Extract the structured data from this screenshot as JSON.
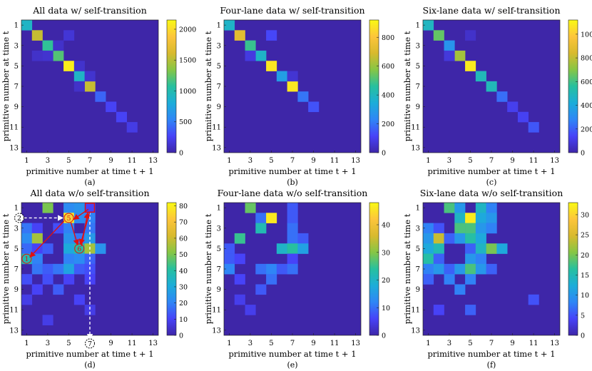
{
  "figure": {
    "xlabel": "primitive number at time t + 1",
    "ylabel": "primitive number at time t",
    "tick_labels": [
      "1",
      "3",
      "5",
      "7",
      "9",
      "11",
      "13"
    ],
    "colormap": [
      "#3e26a8",
      "#4743f8",
      "#2f86f6",
      "#1cadd9",
      "#27c09f",
      "#86c645",
      "#d8ba2e",
      "#fdc53b",
      "#f9f914"
    ]
  },
  "chart_data": [
    {
      "id": "a",
      "type": "heatmap",
      "title": "All data w/ self-transition",
      "caption": "(a)",
      "xlim": [
        1,
        13
      ],
      "ylim": [
        1,
        13
      ],
      "vmax": 2150,
      "colorbar_ticks": [
        0,
        500,
        1000,
        1500,
        2000
      ],
      "cells": [
        [
          1,
          1,
          900
        ],
        [
          2,
          2,
          1550
        ],
        [
          3,
          3,
          1100
        ],
        [
          4,
          4,
          1200
        ],
        [
          5,
          5,
          2100
        ],
        [
          6,
          6,
          900
        ],
        [
          7,
          7,
          1550
        ],
        [
          8,
          8,
          400
        ],
        [
          9,
          9,
          260
        ],
        [
          10,
          10,
          260
        ],
        [
          11,
          11,
          200
        ],
        [
          2,
          5,
          150
        ],
        [
          4,
          3,
          130
        ],
        [
          4,
          2,
          110
        ],
        [
          5,
          6,
          120
        ],
        [
          6,
          7,
          130
        ],
        [
          7,
          6,
          110
        ],
        [
          3,
          4,
          110
        ]
      ],
      "annotations": []
    },
    {
      "id": "b",
      "type": "heatmap",
      "title": "Four-lane data w/ self-transition",
      "caption": "(b)",
      "xlim": [
        1,
        13
      ],
      "ylim": [
        1,
        13
      ],
      "vmax": 920,
      "colorbar_ticks": [
        0,
        200,
        400,
        600,
        800
      ],
      "cells": [
        [
          1,
          1,
          380
        ],
        [
          2,
          2,
          720
        ],
        [
          3,
          3,
          480
        ],
        [
          4,
          4,
          380
        ],
        [
          5,
          5,
          880
        ],
        [
          6,
          6,
          300
        ],
        [
          7,
          7,
          880
        ],
        [
          8,
          8,
          200
        ],
        [
          9,
          9,
          140
        ],
        [
          2,
          5,
          120
        ],
        [
          4,
          3,
          80
        ],
        [
          6,
          7,
          60
        ]
      ],
      "annotations": []
    },
    {
      "id": "c",
      "type": "heatmap",
      "title": "Six-lane data w/ self-transition",
      "caption": "(c)",
      "xlim": [
        1,
        13
      ],
      "ylim": [
        1,
        13
      ],
      "vmax": 1120,
      "colorbar_ticks": [
        0,
        200,
        400,
        600,
        800,
        1000
      ],
      "cells": [
        [
          1,
          1,
          480
        ],
        [
          2,
          2,
          650
        ],
        [
          3,
          3,
          330
        ],
        [
          4,
          4,
          750
        ],
        [
          5,
          5,
          1080
        ],
        [
          6,
          6,
          500
        ],
        [
          7,
          7,
          500
        ],
        [
          8,
          8,
          230
        ],
        [
          9,
          9,
          120
        ],
        [
          10,
          10,
          130
        ],
        [
          11,
          11,
          180
        ],
        [
          4,
          3,
          90
        ],
        [
          2,
          5,
          60
        ]
      ],
      "annotations": []
    },
    {
      "id": "d",
      "type": "heatmap",
      "title": "All data w/o self-transition",
      "caption": "(d)",
      "xlim": [
        1,
        13
      ],
      "ylim": [
        1,
        13
      ],
      "vmax": 82,
      "colorbar_ticks": [
        0,
        10,
        20,
        30,
        40,
        50,
        60,
        70,
        80
      ],
      "cells": [
        [
          1,
          3,
          50
        ],
        [
          1,
          5,
          22
        ],
        [
          1,
          6,
          24
        ],
        [
          1,
          7,
          10
        ],
        [
          2,
          5,
          80
        ],
        [
          2,
          6,
          22
        ],
        [
          2,
          7,
          20
        ],
        [
          3,
          1,
          18
        ],
        [
          3,
          2,
          10
        ],
        [
          3,
          4,
          12
        ],
        [
          3,
          5,
          20
        ],
        [
          3,
          7,
          18
        ],
        [
          4,
          1,
          22
        ],
        [
          4,
          2,
          55
        ],
        [
          4,
          5,
          24
        ],
        [
          4,
          6,
          18
        ],
        [
          4,
          7,
          25
        ],
        [
          5,
          1,
          16
        ],
        [
          5,
          2,
          10
        ],
        [
          5,
          3,
          14
        ],
        [
          5,
          5,
          30
        ],
        [
          5,
          6,
          40
        ],
        [
          5,
          7,
          55
        ],
        [
          5,
          8,
          24
        ],
        [
          6,
          1,
          38
        ],
        [
          6,
          2,
          20
        ],
        [
          6,
          5,
          20
        ],
        [
          6,
          6,
          22
        ],
        [
          6,
          7,
          15
        ],
        [
          7,
          2,
          18
        ],
        [
          7,
          3,
          14
        ],
        [
          7,
          4,
          18
        ],
        [
          7,
          5,
          28
        ],
        [
          7,
          6,
          14
        ],
        [
          7,
          7,
          12
        ],
        [
          8,
          1,
          12
        ],
        [
          8,
          3,
          12
        ],
        [
          8,
          5,
          10
        ],
        [
          8,
          7,
          10
        ],
        [
          9,
          2,
          10
        ],
        [
          9,
          4,
          14
        ],
        [
          10,
          1,
          8
        ],
        [
          10,
          6,
          10
        ],
        [
          11,
          7,
          8
        ],
        [
          12,
          3,
          8
        ]
      ],
      "annotations": [
        {
          "kind": "circle",
          "num": "2",
          "row": 2,
          "col": 0.3,
          "color": "#000000",
          "fill": "#ffffff"
        },
        {
          "kind": "circle",
          "num": "5",
          "row": 2,
          "col": 5,
          "color": "#e11010",
          "fill": "#f5d33a"
        },
        {
          "kind": "circle",
          "num": "6",
          "row": 5,
          "col": 6,
          "color": "#e11010",
          "fill": "none"
        },
        {
          "kind": "circle",
          "num": "1",
          "row": 6,
          "col": 1,
          "color": "#e11010",
          "fill": "none"
        },
        {
          "kind": "circle",
          "num": "7",
          "row": 14.3,
          "col": 7,
          "color": "#000000",
          "fill": "#ffffff"
        },
        {
          "kind": "square",
          "row": 1,
          "col": 7,
          "color": "#e11010"
        },
        {
          "kind": "arrow",
          "from": [
            2,
            0.75
          ],
          "to": [
            2,
            4.45
          ],
          "color": "#ffffff",
          "dashed": true
        },
        {
          "kind": "arrow",
          "from": [
            1.4,
            7
          ],
          "to": [
            13.9,
            7
          ],
          "color": "#ffffff",
          "dashed": true
        },
        {
          "kind": "arrow",
          "from": [
            1.15,
            6.85
          ],
          "to": [
            2.15,
            5.45
          ],
          "color": "#e11010",
          "dashed": false
        },
        {
          "kind": "arrow",
          "from": [
            2.45,
            5.2
          ],
          "to": [
            4.65,
            5.85
          ],
          "color": "#e11010",
          "dashed": false
        },
        {
          "kind": "arrow",
          "from": [
            4.75,
            6.2
          ],
          "to": [
            1.5,
            6.8
          ],
          "color": "#e11010",
          "dashed": false
        },
        {
          "kind": "arrow",
          "from": [
            2.3,
            4.55
          ],
          "to": [
            5.85,
            1.3
          ],
          "color": "#e11010",
          "dashed": false
        },
        {
          "kind": "arrow",
          "from": [
            1.4,
            7
          ],
          "to": [
            4.6,
            6.1
          ],
          "color": "#e11010",
          "dashed": false
        }
      ]
    },
    {
      "id": "e",
      "type": "heatmap",
      "title": "Four-lane data w/o self-transition",
      "caption": "(e)",
      "xlim": [
        1,
        13
      ],
      "ylim": [
        1,
        13
      ],
      "vmax": 48,
      "colorbar_ticks": [
        0,
        10,
        20,
        30,
        40
      ],
      "cells": [
        [
          1,
          3,
          28
        ],
        [
          1,
          7,
          8
        ],
        [
          2,
          4,
          10
        ],
        [
          2,
          5,
          46
        ],
        [
          2,
          7,
          8
        ],
        [
          3,
          4,
          22
        ],
        [
          3,
          7,
          10
        ],
        [
          4,
          2,
          25
        ],
        [
          4,
          7,
          10
        ],
        [
          4,
          8,
          8
        ],
        [
          5,
          1,
          8
        ],
        [
          5,
          6,
          20
        ],
        [
          5,
          7,
          24
        ],
        [
          5,
          8,
          16
        ],
        [
          6,
          1,
          8
        ],
        [
          6,
          2,
          6
        ],
        [
          6,
          7,
          6
        ],
        [
          7,
          1,
          12
        ],
        [
          7,
          4,
          10
        ],
        [
          7,
          5,
          12
        ],
        [
          7,
          6,
          8
        ],
        [
          7,
          7,
          10
        ],
        [
          8,
          2,
          6
        ],
        [
          8,
          5,
          10
        ],
        [
          9,
          4,
          8
        ],
        [
          10,
          2,
          5
        ],
        [
          11,
          3,
          5
        ]
      ],
      "annotations": []
    },
    {
      "id": "f",
      "type": "heatmap",
      "title": "Six-lane data w/o self-transition",
      "caption": "(f)",
      "xlim": [
        1,
        13
      ],
      "ylim": [
        1,
        13
      ],
      "vmax": 33,
      "colorbar_ticks": [
        0,
        5,
        10,
        15,
        20,
        25,
        30
      ],
      "cells": [
        [
          1,
          3,
          18
        ],
        [
          1,
          4,
          10
        ],
        [
          1,
          6,
          14
        ],
        [
          1,
          7,
          8
        ],
        [
          2,
          4,
          14
        ],
        [
          2,
          5,
          32
        ],
        [
          2,
          6,
          12
        ],
        [
          2,
          7,
          10
        ],
        [
          3,
          1,
          8
        ],
        [
          3,
          2,
          5
        ],
        [
          3,
          4,
          18
        ],
        [
          3,
          5,
          18
        ],
        [
          3,
          6,
          10
        ],
        [
          3,
          7,
          8
        ],
        [
          4,
          1,
          10
        ],
        [
          4,
          2,
          24
        ],
        [
          4,
          3,
          6
        ],
        [
          4,
          4,
          10
        ],
        [
          4,
          5,
          16
        ],
        [
          4,
          6,
          12
        ],
        [
          5,
          1,
          12
        ],
        [
          5,
          2,
          15
        ],
        [
          5,
          5,
          6
        ],
        [
          5,
          6,
          14
        ],
        [
          5,
          7,
          20
        ],
        [
          5,
          8,
          12
        ],
        [
          6,
          1,
          16
        ],
        [
          6,
          2,
          6
        ],
        [
          6,
          5,
          10
        ],
        [
          6,
          6,
          8
        ],
        [
          7,
          1,
          8
        ],
        [
          7,
          2,
          10
        ],
        [
          7,
          3,
          6
        ],
        [
          7,
          4,
          10
        ],
        [
          7,
          5,
          18
        ],
        [
          7,
          6,
          10
        ],
        [
          7,
          7,
          6
        ],
        [
          8,
          1,
          6
        ],
        [
          8,
          3,
          8
        ],
        [
          8,
          5,
          8
        ],
        [
          9,
          4,
          8
        ],
        [
          10,
          11,
          5
        ],
        [
          11,
          2,
          4
        ],
        [
          11,
          5,
          6
        ]
      ],
      "annotations": []
    }
  ]
}
